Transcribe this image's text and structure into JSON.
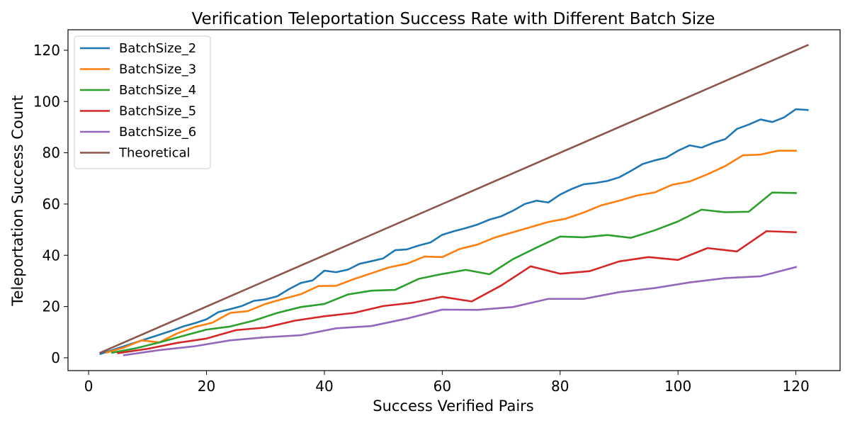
{
  "chart_data": {
    "type": "line",
    "title": "Verification Teleportation Success Rate with Different Batch Size",
    "xlabel": "Success Verified Pairs",
    "ylabel": "Teleportation Success Count",
    "xlim": [
      -3.5,
      127.5
    ],
    "ylim": [
      -5,
      128
    ],
    "xticks": [
      0,
      20,
      40,
      60,
      80,
      100,
      120
    ],
    "yticks": [
      0,
      20,
      40,
      60,
      80,
      100,
      120
    ],
    "grid": false,
    "legend_position": "top-left",
    "series": [
      {
        "name": "BatchSize_2",
        "color": "#1f77b4",
        "points": [
          [
            2,
            1.5
          ],
          [
            4,
            3
          ],
          [
            6,
            4.5
          ],
          [
            8,
            6
          ],
          [
            10,
            7.5
          ],
          [
            12,
            9
          ],
          [
            14,
            10.5
          ],
          [
            16,
            12.2
          ],
          [
            18,
            13.5
          ],
          [
            20,
            15
          ],
          [
            22,
            17.8
          ],
          [
            24,
            19
          ],
          [
            26,
            20.2
          ],
          [
            28,
            22.2
          ],
          [
            30,
            22.8
          ],
          [
            32,
            24
          ],
          [
            34,
            26.8
          ],
          [
            36,
            29.2
          ],
          [
            38,
            30.2
          ],
          [
            40,
            34
          ],
          [
            42,
            33.4
          ],
          [
            44,
            34.4
          ],
          [
            46,
            36.7
          ],
          [
            48,
            37.7
          ],
          [
            50,
            38.8
          ],
          [
            52,
            42
          ],
          [
            54,
            42.3
          ],
          [
            56,
            43.8
          ],
          [
            58,
            45
          ],
          [
            60,
            48
          ],
          [
            62,
            49.4
          ],
          [
            64,
            50.6
          ],
          [
            66,
            52
          ],
          [
            68,
            53.9
          ],
          [
            70,
            55.2
          ],
          [
            72,
            57.4
          ],
          [
            74,
            60
          ],
          [
            76,
            61.3
          ],
          [
            78,
            60.6
          ],
          [
            80,
            63.7
          ],
          [
            82,
            65.9
          ],
          [
            84,
            67.7
          ],
          [
            86,
            68.2
          ],
          [
            88,
            69
          ],
          [
            90,
            70.4
          ],
          [
            92,
            72.9
          ],
          [
            94,
            75.6
          ],
          [
            96,
            77
          ],
          [
            98,
            78.1
          ],
          [
            100,
            80.8
          ],
          [
            102,
            82.9
          ],
          [
            104,
            82
          ],
          [
            106,
            83.9
          ],
          [
            108,
            85.3
          ],
          [
            110,
            89.3
          ],
          [
            112,
            91
          ],
          [
            114,
            93
          ],
          [
            116,
            92
          ],
          [
            118,
            93.8
          ],
          [
            120,
            97
          ],
          [
            122,
            96.7
          ]
        ]
      },
      {
        "name": "BatchSize_3",
        "color": "#ff7f0e",
        "points": [
          [
            3,
            2
          ],
          [
            6,
            4
          ],
          [
            9,
            6.8
          ],
          [
            12,
            6
          ],
          [
            15,
            9.5
          ],
          [
            18,
            12
          ],
          [
            21,
            13.7
          ],
          [
            24,
            17.5
          ],
          [
            27,
            18.2
          ],
          [
            30,
            21
          ],
          [
            33,
            23
          ],
          [
            36,
            24.8
          ],
          [
            39,
            28
          ],
          [
            42,
            28.1
          ],
          [
            45,
            30.7
          ],
          [
            48,
            33
          ],
          [
            51,
            35.3
          ],
          [
            54,
            36.7
          ],
          [
            57,
            39.5
          ],
          [
            60,
            39.3
          ],
          [
            63,
            42.5
          ],
          [
            66,
            44.2
          ],
          [
            69,
            47
          ],
          [
            72,
            49
          ],
          [
            75,
            51
          ],
          [
            78,
            53
          ],
          [
            81,
            54.3
          ],
          [
            84,
            56.7
          ],
          [
            87,
            59.5
          ],
          [
            90,
            61.3
          ],
          [
            93,
            63.3
          ],
          [
            96,
            64.5
          ],
          [
            99,
            67.5
          ],
          [
            102,
            68.8
          ],
          [
            105,
            71.6
          ],
          [
            108,
            74.8
          ],
          [
            111,
            79
          ],
          [
            114,
            79.3
          ],
          [
            117,
            80.8
          ],
          [
            120,
            80.8
          ]
        ]
      },
      {
        "name": "BatchSize_4",
        "color": "#2ca02c",
        "points": [
          [
            4,
            2
          ],
          [
            8,
            3.7
          ],
          [
            12,
            6
          ],
          [
            16,
            8.5
          ],
          [
            20,
            11
          ],
          [
            24,
            12.2
          ],
          [
            28,
            14.5
          ],
          [
            32,
            17.5
          ],
          [
            36,
            19.8
          ],
          [
            40,
            21
          ],
          [
            44,
            24.7
          ],
          [
            48,
            26.2
          ],
          [
            52,
            26.5
          ],
          [
            56,
            30.8
          ],
          [
            60,
            32.7
          ],
          [
            64,
            34.3
          ],
          [
            68,
            32.6
          ],
          [
            72,
            38.5
          ],
          [
            76,
            43
          ],
          [
            80,
            47.3
          ],
          [
            84,
            47
          ],
          [
            88,
            47.9
          ],
          [
            92,
            46.8
          ],
          [
            96,
            49.7
          ],
          [
            100,
            53.2
          ],
          [
            104,
            57.8
          ],
          [
            108,
            56.8
          ],
          [
            112,
            57
          ],
          [
            116,
            64.5
          ],
          [
            120,
            64.3
          ]
        ]
      },
      {
        "name": "BatchSize_5",
        "color": "#d62728",
        "points": [
          [
            5,
            1.8
          ],
          [
            10,
            3.5
          ],
          [
            15,
            5.8
          ],
          [
            20,
            7.5
          ],
          [
            25,
            10.8
          ],
          [
            30,
            11.8
          ],
          [
            35,
            14.5
          ],
          [
            40,
            16.2
          ],
          [
            45,
            17.5
          ],
          [
            50,
            20.2
          ],
          [
            55,
            21.5
          ],
          [
            60,
            23.8
          ],
          [
            65,
            22
          ],
          [
            70,
            28.2
          ],
          [
            75,
            35.7
          ],
          [
            80,
            32.8
          ],
          [
            85,
            33.8
          ],
          [
            90,
            37.6
          ],
          [
            95,
            39.3
          ],
          [
            100,
            38.2
          ],
          [
            105,
            42.8
          ],
          [
            110,
            41.5
          ],
          [
            115,
            49.4
          ],
          [
            120,
            49
          ]
        ]
      },
      {
        "name": "BatchSize_6",
        "color": "#9467bd",
        "points": [
          [
            6,
            1
          ],
          [
            12,
            3
          ],
          [
            18,
            4.5
          ],
          [
            24,
            6.8
          ],
          [
            30,
            8
          ],
          [
            36,
            8.8
          ],
          [
            42,
            11.5
          ],
          [
            48,
            12.4
          ],
          [
            54,
            15.3
          ],
          [
            60,
            18.8
          ],
          [
            66,
            18.7
          ],
          [
            72,
            19.8
          ],
          [
            78,
            23
          ],
          [
            84,
            23
          ],
          [
            90,
            25.6
          ],
          [
            96,
            27.2
          ],
          [
            102,
            29.4
          ],
          [
            108,
            31.1
          ],
          [
            114,
            31.8
          ],
          [
            120,
            35.4
          ]
        ]
      },
      {
        "name": "Theoretical",
        "color": "#8c564b",
        "points": [
          [
            2,
            2
          ],
          [
            122,
            122
          ]
        ]
      }
    ]
  }
}
